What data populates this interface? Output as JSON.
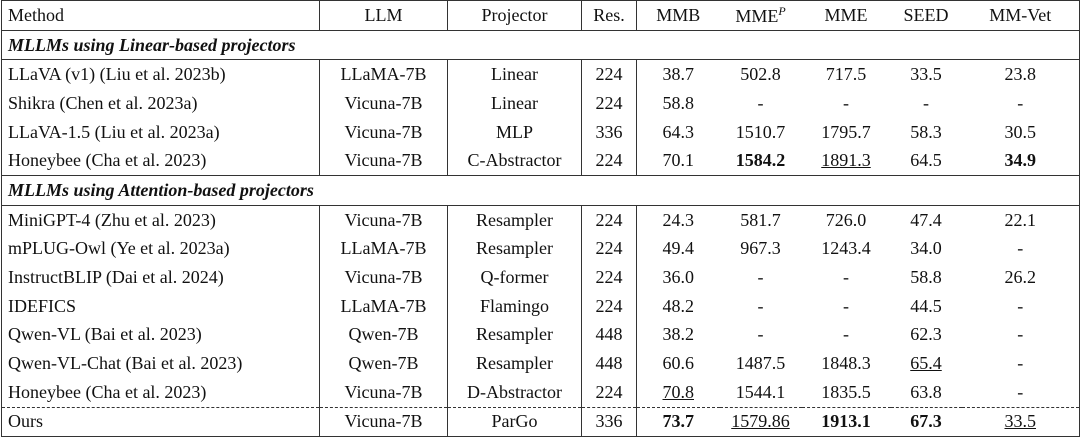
{
  "table": {
    "header": [
      "Method",
      "LLM",
      "Projector",
      "Res.",
      "MMB",
      {
        "text": "MME",
        "sup": "P"
      },
      "MME",
      "SEED",
      "MM-Vet"
    ],
    "sections": [
      {
        "title": "MLLMs using Linear-based projectors",
        "rows": [
          [
            "LLaVA (v1) (Liu et al. 2023b)",
            "LLaMA-7B",
            "Linear",
            "224",
            "38.7",
            "502.8",
            "717.5",
            "33.5",
            "23.8"
          ],
          [
            "Shikra (Chen et al. 2023a)",
            "Vicuna-7B",
            "Linear",
            "224",
            "58.8",
            "-",
            "-",
            "-",
            "-"
          ],
          [
            "LLaVA-1.5 (Liu et al. 2023a)",
            "Vicuna-7B",
            "MLP",
            "336",
            "64.3",
            "1510.7",
            "1795.7",
            "58.3",
            "30.5"
          ],
          [
            "Honeybee (Cha et al. 2023)",
            "Vicuna-7B",
            "C-Abstractor",
            "224",
            "70.1",
            "1584.2",
            "1891.3",
            "64.5",
            "34.9"
          ]
        ],
        "bold": [
          [
            3,
            5
          ],
          [
            3,
            8
          ]
        ],
        "underline": [
          [
            3,
            6
          ]
        ]
      },
      {
        "title": "MLLMs using Attention-based projectors",
        "rows": [
          [
            "MiniGPT-4 (Zhu et al. 2023)",
            "Vicuna-7B",
            "Resampler",
            "224",
            "24.3",
            "581.7",
            "726.0",
            "47.4",
            "22.1"
          ],
          [
            "mPLUG-Owl (Ye et al. 2023a)",
            "LLaMA-7B",
            "Resampler",
            "224",
            "49.4",
            "967.3",
            "1243.4",
            "34.0",
            "-"
          ],
          [
            "InstructBLIP (Dai et al. 2024)",
            "Vicuna-7B",
            "Q-former",
            "224",
            "36.0",
            "-",
            "-",
            "58.8",
            "26.2"
          ],
          [
            "IDEFICS",
            "LLaMA-7B",
            "Flamingo",
            "224",
            "48.2",
            "-",
            "-",
            "44.5",
            "-"
          ],
          [
            "Qwen-VL (Bai et al. 2023)",
            "Qwen-7B",
            "Resampler",
            "448",
            "38.2",
            "-",
            "-",
            "62.3",
            "-"
          ],
          [
            "Qwen-VL-Chat (Bai et al. 2023)",
            "Qwen-7B",
            "Resampler",
            "448",
            "60.6",
            "1487.5",
            "1848.3",
            "65.4",
            "-"
          ],
          [
            "Honeybee (Cha et al. 2023)",
            "Vicuna-7B",
            "D-Abstractor",
            "224",
            "70.8",
            "1544.1",
            "1835.5",
            "63.8",
            "-"
          ]
        ],
        "bold": [],
        "underline": [
          [
            6,
            4
          ],
          [
            5,
            7
          ]
        ]
      },
      {
        "rows": [
          [
            "Ours",
            "Vicuna-7B",
            "ParGo",
            "336",
            "73.7",
            "1579.86",
            "1913.1",
            "67.3",
            "33.5"
          ]
        ],
        "bold": [
          [
            0,
            4
          ],
          [
            0,
            6
          ],
          [
            0,
            7
          ]
        ],
        "underline": [
          [
            0,
            5
          ],
          [
            0,
            8
          ]
        ]
      }
    ]
  }
}
